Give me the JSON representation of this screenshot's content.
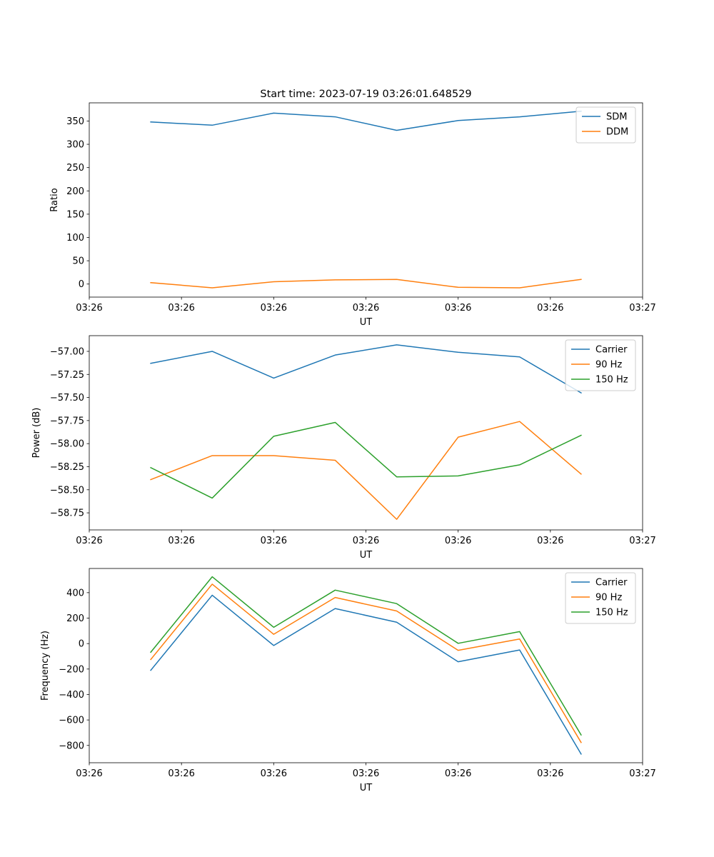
{
  "figure_title": "Start time: 2023-07-19 03:26:01.648529",
  "colors": {
    "blue": "#1f77b4",
    "orange": "#ff7f0e",
    "green": "#2ca02c"
  },
  "chart_data": [
    {
      "type": "line",
      "title": "Start time: 2023-07-19 03:26:01.648529",
      "xlabel": "UT",
      "ylabel": "Ratio",
      "x": [
        1,
        2,
        3,
        4,
        5,
        6,
        7,
        8
      ],
      "xlim": [
        0,
        9
      ],
      "x_ticks": [
        0,
        1.5,
        3,
        4.5,
        6,
        7.5,
        9
      ],
      "x_tick_labels": [
        "03:26",
        "03:26",
        "03:26",
        "03:26",
        "03:26",
        "03:26",
        "03:27"
      ],
      "ylim": [
        -28,
        389
      ],
      "y_ticks": [
        0,
        50,
        100,
        150,
        200,
        250,
        300,
        350
      ],
      "y_tick_labels": [
        "0",
        "50",
        "100",
        "150",
        "200",
        "250",
        "300",
        "350"
      ],
      "legend_position": "top-right",
      "series": [
        {
          "name": "SDM",
          "color": "#1f77b4",
          "values": [
            348,
            341,
            367,
            359,
            330,
            351,
            359,
            371
          ]
        },
        {
          "name": "DDM",
          "color": "#ff7f0e",
          "values": [
            3,
            -8,
            5,
            9,
            10,
            -7,
            -8,
            10
          ]
        }
      ]
    },
    {
      "type": "line",
      "title": "",
      "xlabel": "UT",
      "ylabel": "Power (dB)",
      "x": [
        1,
        2,
        3,
        4,
        5,
        6,
        7,
        8
      ],
      "xlim": [
        0,
        9
      ],
      "x_ticks": [
        0,
        1.5,
        3,
        4.5,
        6,
        7.5,
        9
      ],
      "x_tick_labels": [
        "03:26",
        "03:26",
        "03:26",
        "03:26",
        "03:26",
        "03:26",
        "03:27"
      ],
      "ylim": [
        -58.935,
        -56.83
      ],
      "y_ticks": [
        -57.0,
        -57.25,
        -57.5,
        -57.75,
        -58.0,
        -58.25,
        -58.5,
        -58.75
      ],
      "y_tick_labels": [
        "−57.00",
        "−57.25",
        "−57.50",
        "−57.75",
        "−58.00",
        "−58.25",
        "−58.50",
        "−58.75"
      ],
      "legend_position": "top-right",
      "series": [
        {
          "name": "Carrier",
          "color": "#1f77b4",
          "values": [
            -57.13,
            -57.0,
            -57.29,
            -57.04,
            -56.93,
            -57.01,
            -57.06,
            -57.45
          ]
        },
        {
          "name": "90 Hz",
          "color": "#ff7f0e",
          "values": [
            -58.39,
            -58.13,
            -58.13,
            -58.18,
            -58.82,
            -57.93,
            -57.76,
            -58.33
          ]
        },
        {
          "name": "150 Hz",
          "color": "#2ca02c",
          "values": [
            -58.26,
            -58.59,
            -57.92,
            -57.77,
            -58.36,
            -58.35,
            -58.23,
            -57.91
          ]
        }
      ]
    },
    {
      "type": "line",
      "title": "",
      "xlabel": "UT",
      "ylabel": "Frequency (Hz)",
      "x": [
        1,
        2,
        3,
        4,
        5,
        6,
        7,
        8
      ],
      "xlim": [
        0,
        9
      ],
      "x_ticks": [
        0,
        1.5,
        3,
        4.5,
        6,
        7.5,
        9
      ],
      "x_tick_labels": [
        "03:26",
        "03:26",
        "03:26",
        "03:26",
        "03:26",
        "03:26",
        "03:27"
      ],
      "ylim": [
        -936,
        590
      ],
      "y_ticks": [
        400,
        200,
        0,
        -200,
        -400,
        -600,
        -800
      ],
      "y_tick_labels": [
        "400",
        "200",
        "0",
        "−200",
        "−400",
        "−600",
        "−800"
      ],
      "legend_position": "top-right",
      "series": [
        {
          "name": "Carrier",
          "color": "#1f77b4",
          "values": [
            -210,
            380,
            -15,
            275,
            168,
            -143,
            -50,
            -868
          ]
        },
        {
          "name": "90 Hz",
          "color": "#ff7f0e",
          "values": [
            -125,
            467,
            73,
            362,
            256,
            -53,
            36,
            -777
          ]
        },
        {
          "name": "150 Hz",
          "color": "#2ca02c",
          "values": [
            -68,
            525,
            128,
            420,
            314,
            2,
            94,
            -718
          ]
        }
      ]
    }
  ]
}
